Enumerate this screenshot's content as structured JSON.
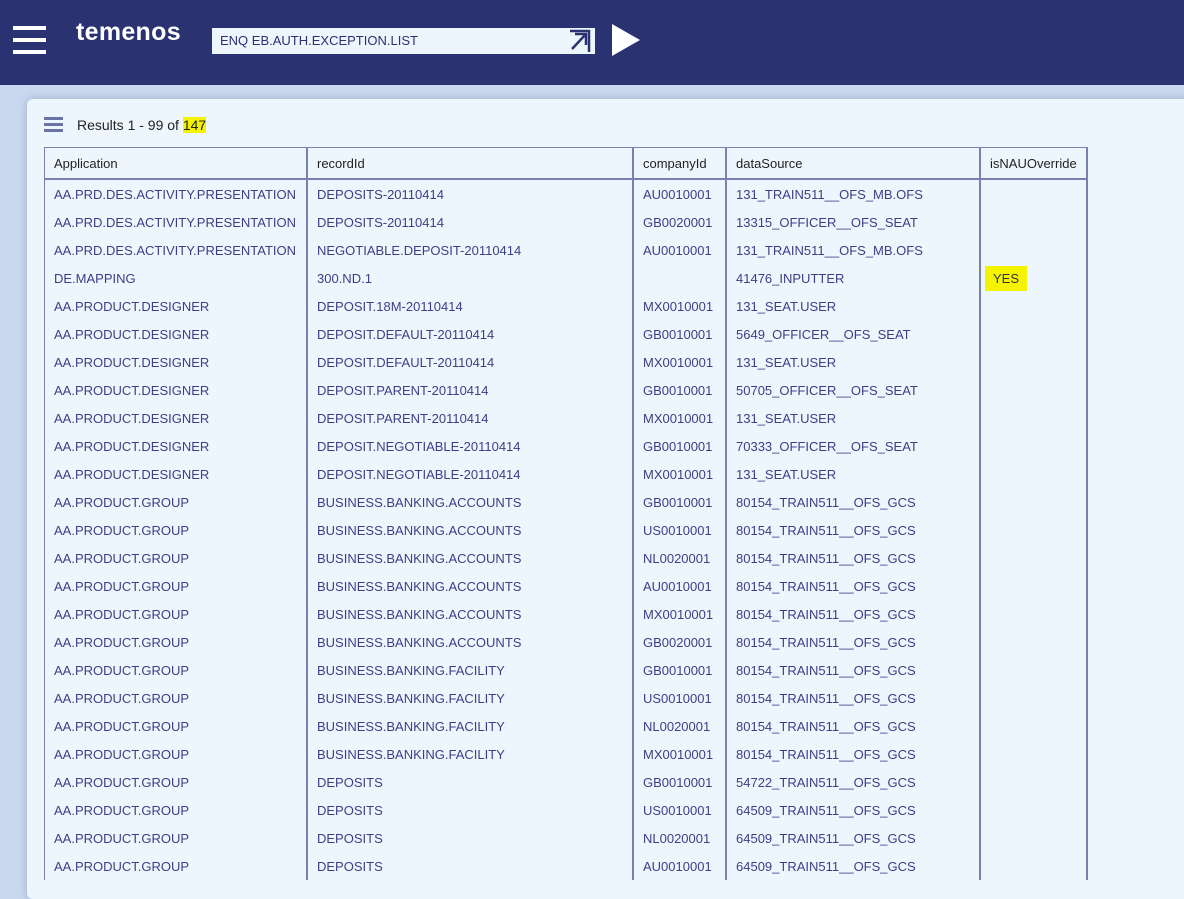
{
  "header": {
    "logo": "temenos",
    "command": "ENQ EB.AUTH.EXCEPTION.LIST"
  },
  "results": {
    "prefix": "Results 1 - 99 of ",
    "total": "147"
  },
  "table": {
    "columns": [
      "Application",
      "recordId",
      "companyId",
      "dataSource",
      "isNAUOverride"
    ],
    "rows": [
      [
        "AA.PRD.DES.ACTIVITY.PRESENTATION",
        "DEPOSITS-20110414",
        "AU0010001",
        "131_TRAIN511__OFS_MB.OFS",
        ""
      ],
      [
        "AA.PRD.DES.ACTIVITY.PRESENTATION",
        "DEPOSITS-20110414",
        "GB0020001",
        "13315_OFFICER__OFS_SEAT",
        ""
      ],
      [
        "AA.PRD.DES.ACTIVITY.PRESENTATION",
        "NEGOTIABLE.DEPOSIT-20110414",
        "AU0010001",
        "131_TRAIN511__OFS_MB.OFS",
        ""
      ],
      [
        "DE.MAPPING",
        "300.ND.1",
        "",
        "41476_INPUTTER",
        "YES"
      ],
      [
        "AA.PRODUCT.DESIGNER",
        "DEPOSIT.18M-20110414",
        "MX0010001",
        "131_SEAT.USER",
        ""
      ],
      [
        "AA.PRODUCT.DESIGNER",
        "DEPOSIT.DEFAULT-20110414",
        "GB0010001",
        "5649_OFFICER__OFS_SEAT",
        ""
      ],
      [
        "AA.PRODUCT.DESIGNER",
        "DEPOSIT.DEFAULT-20110414",
        "MX0010001",
        "131_SEAT.USER",
        ""
      ],
      [
        "AA.PRODUCT.DESIGNER",
        "DEPOSIT.PARENT-20110414",
        "GB0010001",
        "50705_OFFICER__OFS_SEAT",
        ""
      ],
      [
        "AA.PRODUCT.DESIGNER",
        "DEPOSIT.PARENT-20110414",
        "MX0010001",
        "131_SEAT.USER",
        ""
      ],
      [
        "AA.PRODUCT.DESIGNER",
        "DEPOSIT.NEGOTIABLE-20110414",
        "GB0010001",
        "70333_OFFICER__OFS_SEAT",
        ""
      ],
      [
        "AA.PRODUCT.DESIGNER",
        "DEPOSIT.NEGOTIABLE-20110414",
        "MX0010001",
        "131_SEAT.USER",
        ""
      ],
      [
        "AA.PRODUCT.GROUP",
        "BUSINESS.BANKING.ACCOUNTS",
        "GB0010001",
        "80154_TRAIN511__OFS_GCS",
        ""
      ],
      [
        "AA.PRODUCT.GROUP",
        "BUSINESS.BANKING.ACCOUNTS",
        "US0010001",
        "80154_TRAIN511__OFS_GCS",
        ""
      ],
      [
        "AA.PRODUCT.GROUP",
        "BUSINESS.BANKING.ACCOUNTS",
        "NL0020001",
        "80154_TRAIN511__OFS_GCS",
        ""
      ],
      [
        "AA.PRODUCT.GROUP",
        "BUSINESS.BANKING.ACCOUNTS",
        "AU0010001",
        "80154_TRAIN511__OFS_GCS",
        ""
      ],
      [
        "AA.PRODUCT.GROUP",
        "BUSINESS.BANKING.ACCOUNTS",
        "MX0010001",
        "80154_TRAIN511__OFS_GCS",
        ""
      ],
      [
        "AA.PRODUCT.GROUP",
        "BUSINESS.BANKING.ACCOUNTS",
        "GB0020001",
        "80154_TRAIN511__OFS_GCS",
        ""
      ],
      [
        "AA.PRODUCT.GROUP",
        "BUSINESS.BANKING.FACILITY",
        "GB0010001",
        "80154_TRAIN511__OFS_GCS",
        ""
      ],
      [
        "AA.PRODUCT.GROUP",
        "BUSINESS.BANKING.FACILITY",
        "US0010001",
        "80154_TRAIN511__OFS_GCS",
        ""
      ],
      [
        "AA.PRODUCT.GROUP",
        "BUSINESS.BANKING.FACILITY",
        "NL0020001",
        "80154_TRAIN511__OFS_GCS",
        ""
      ],
      [
        "AA.PRODUCT.GROUP",
        "BUSINESS.BANKING.FACILITY",
        "MX0010001",
        "80154_TRAIN511__OFS_GCS",
        ""
      ],
      [
        "AA.PRODUCT.GROUP",
        "DEPOSITS",
        "GB0010001",
        "54722_TRAIN511__OFS_GCS",
        ""
      ],
      [
        "AA.PRODUCT.GROUP",
        "DEPOSITS",
        "US0010001",
        "64509_TRAIN511__OFS_GCS",
        ""
      ],
      [
        "AA.PRODUCT.GROUP",
        "DEPOSITS",
        "NL0020001",
        "64509_TRAIN511__OFS_GCS",
        ""
      ],
      [
        "AA.PRODUCT.GROUP",
        "DEPOSITS",
        "AU0010001",
        "64509_TRAIN511__OFS_GCS",
        ""
      ]
    ]
  },
  "colors": {
    "header_bg": "#2a3272",
    "highlight": "#f4f400",
    "card_bg": "#eef6fd"
  }
}
